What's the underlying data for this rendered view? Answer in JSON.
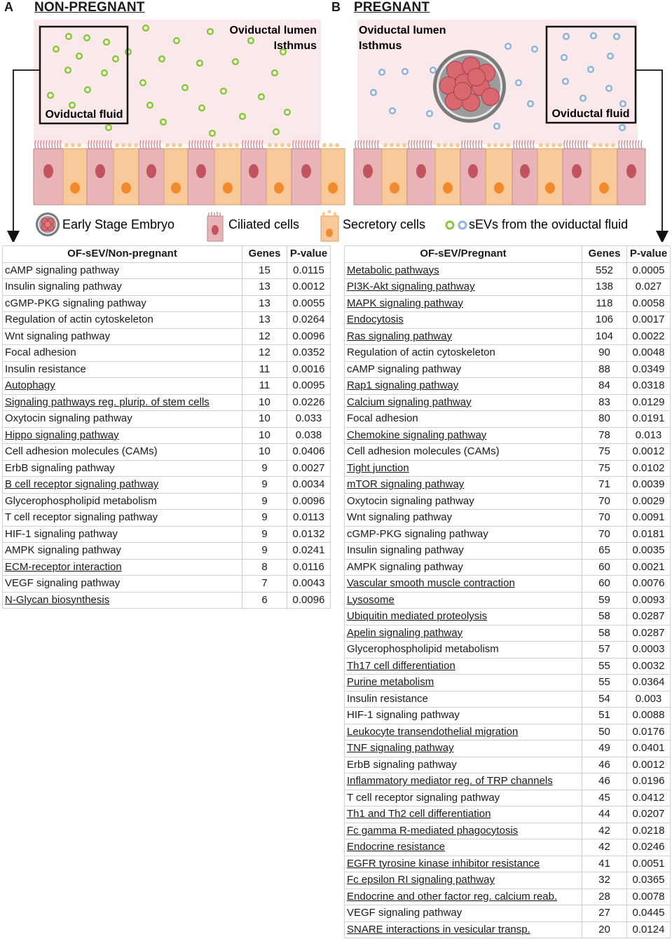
{
  "panel_a": {
    "letter": "A",
    "title": "NON-PREGNANT",
    "lumen": "Oviductal lumen",
    "region": "Isthmus",
    "fluid_label": "Oviductal fluid"
  },
  "panel_b": {
    "letter": "B",
    "title": "PREGNANT",
    "lumen": "Oviductal lumen",
    "region": "Isthmus",
    "fluid_label": "Oviductal fluid"
  },
  "legend": {
    "embryo": "Early Stage Embryo",
    "ciliated": "Ciliated cells",
    "secretory": "Secretory cells",
    "sevs": "sEVs from the oviductal fluid"
  },
  "colors": {
    "green_sev": "#8dc63f",
    "blue_sev": "#8fb4dc",
    "lumen_bg": "#f9e9ea",
    "ciliated": "#e8b4b8",
    "secretory": "#f9c99a",
    "embryo": "#d9676f"
  },
  "table_a": {
    "headers": [
      "OF-sEV/Non-pregnant",
      "Genes",
      "P-value"
    ],
    "rows": [
      {
        "name": "cAMP signaling pathway",
        "genes": "15",
        "p": "0.0115",
        "u": false
      },
      {
        "name": "Insulin signaling pathway",
        "genes": "13",
        "p": "0.0012",
        "u": false
      },
      {
        "name": "cGMP-PKG signaling pathway",
        "genes": "13",
        "p": "0.0055",
        "u": false
      },
      {
        "name": "Regulation of actin cytoskeleton",
        "genes": "13",
        "p": "0.0264",
        "u": false
      },
      {
        "name": "Wnt signaling pathway",
        "genes": "12",
        "p": "0.0096",
        "u": false
      },
      {
        "name": "Focal adhesion",
        "genes": "12",
        "p": "0.0352",
        "u": false
      },
      {
        "name": "Insulin resistance",
        "genes": "11",
        "p": "0.0016",
        "u": false
      },
      {
        "name": "Autophagy",
        "genes": "11",
        "p": "0.0095",
        "u": true
      },
      {
        "name": "Signaling pathways reg. plurip. of stem cells",
        "genes": "10",
        "p": "0.0226",
        "u": true
      },
      {
        "name": "Oxytocin signaling pathway",
        "genes": "10",
        "p": "0.033",
        "u": false
      },
      {
        "name": "Hippo signaling pathway",
        "genes": "10",
        "p": "0.038",
        "u": true
      },
      {
        "name": "Cell adhesion molecules (CAMs)",
        "genes": "10",
        "p": "0.0406",
        "u": false
      },
      {
        "name": "ErbB signaling pathway",
        "genes": "9",
        "p": "0.0027",
        "u": false
      },
      {
        "name": "B cell receptor signaling pathway",
        "genes": "9",
        "p": "0.0034",
        "u": true
      },
      {
        "name": "Glycerophospholipid metabolism",
        "genes": "9",
        "p": "0.0096",
        "u": false
      },
      {
        "name": "T cell receptor signaling pathway",
        "genes": "9",
        "p": "0.0113",
        "u": false
      },
      {
        "name": "HIF-1 signaling pathway",
        "genes": "9",
        "p": "0.0132",
        "u": false
      },
      {
        "name": "AMPK signaling pathway",
        "genes": "9",
        "p": "0.0241",
        "u": false
      },
      {
        "name": "ECM-receptor interaction",
        "genes": "8",
        "p": "0.0116",
        "u": true
      },
      {
        "name": "VEGF signaling pathway",
        "genes": "7",
        "p": "0.0043",
        "u": false
      },
      {
        "name": "N-Glycan biosynthesis",
        "genes": "6",
        "p": "0.0096",
        "u": true
      }
    ]
  },
  "table_b": {
    "headers": [
      "OF-sEV/Pregnant",
      "Genes",
      "P-value"
    ],
    "rows": [
      {
        "name": "Metabolic pathways",
        "genes": "552",
        "p": "0.0005",
        "u": true
      },
      {
        "name": "PI3K-Akt signaling pathway",
        "genes": "138",
        "p": "0.027",
        "u": true
      },
      {
        "name": "MAPK signaling pathway",
        "genes": "118",
        "p": "0.0058",
        "u": true
      },
      {
        "name": "Endocytosis",
        "genes": "106",
        "p": "0.0017",
        "u": true
      },
      {
        "name": "Ras signaling pathway",
        "genes": "104",
        "p": "0.0022",
        "u": true
      },
      {
        "name": "Regulation of actin cytoskeleton",
        "genes": "90",
        "p": "0.0048",
        "u": false
      },
      {
        "name": "cAMP signaling pathway",
        "genes": "88",
        "p": "0.0349",
        "u": false
      },
      {
        "name": "Rap1 signaling pathway",
        "genes": "84",
        "p": "0.0318",
        "u": true
      },
      {
        "name": "Calcium signaling pathway",
        "genes": "83",
        "p": "0.0129",
        "u": true
      },
      {
        "name": "Focal adhesion",
        "genes": "80",
        "p": "0.0191",
        "u": false
      },
      {
        "name": "Chemokine signaling pathway",
        "genes": "78",
        "p": "0.013",
        "u": true
      },
      {
        "name": "Cell adhesion molecules (CAMs)",
        "genes": "75",
        "p": "0.0012",
        "u": false
      },
      {
        "name": "Tight junction",
        "genes": "75",
        "p": "0.0102",
        "u": true
      },
      {
        "name": "mTOR signaling pathway",
        "genes": "71",
        "p": "0.0039",
        "u": true
      },
      {
        "name": "Oxytocin signaling pathway",
        "genes": "70",
        "p": "0.0029",
        "u": false
      },
      {
        "name": "Wnt signaling pathway",
        "genes": "70",
        "p": "0.0091",
        "u": false
      },
      {
        "name": "cGMP-PKG signaling pathway",
        "genes": "70",
        "p": "0.0181",
        "u": false
      },
      {
        "name": "Insulin signaling pathway",
        "genes": "65",
        "p": "0.0035",
        "u": false
      },
      {
        "name": "AMPK signaling pathway",
        "genes": "60",
        "p": "0.0021",
        "u": false
      },
      {
        "name": "Vascular smooth muscle contraction",
        "genes": "60",
        "p": "0.0076",
        "u": true
      },
      {
        "name": "Lysosome",
        "genes": "59",
        "p": "0.0093",
        "u": true
      },
      {
        "name": "Ubiquitin mediated proteolysis",
        "genes": "58",
        "p": "0.0287",
        "u": true
      },
      {
        "name": "Apelin signaling pathway",
        "genes": "58",
        "p": "0.0287",
        "u": true
      },
      {
        "name": "Glycerophospholipid metabolism",
        "genes": "57",
        "p": "0.0003",
        "u": false
      },
      {
        "name": "Th17 cell differentiation",
        "genes": "55",
        "p": "0.0032",
        "u": true
      },
      {
        "name": "Purine metabolism",
        "genes": "55",
        "p": "0.0364",
        "u": true
      },
      {
        "name": "Insulin resistance",
        "genes": "54",
        "p": "0.003",
        "u": false
      },
      {
        "name": "HIF-1 signaling pathway",
        "genes": "51",
        "p": "0.0088",
        "u": false
      },
      {
        "name": "Leukocyte transendothelial migration",
        "genes": "50",
        "p": "0.0176",
        "u": true
      },
      {
        "name": "TNF signaling pathway",
        "genes": "49",
        "p": "0.0401",
        "u": true
      },
      {
        "name": "ErbB signaling pathway",
        "genes": "46",
        "p": "0.0012",
        "u": false
      },
      {
        "name": "Inflammatory mediator reg. of TRP channels",
        "genes": "46",
        "p": "0.0196",
        "u": true
      },
      {
        "name": "T cell receptor signaling pathway",
        "genes": "45",
        "p": "0.0412",
        "u": false
      },
      {
        "name": "Th1 and Th2 cell differentiation",
        "genes": "44",
        "p": "0.0207",
        "u": true
      },
      {
        "name": "Fc gamma R-mediated phagocytosis",
        "genes": "42",
        "p": "0.0218",
        "u": true
      },
      {
        "name": "Endocrine resistance",
        "genes": "42",
        "p": "0.0246",
        "u": true
      },
      {
        "name": "EGFR tyrosine kinase inhibitor resistance",
        "genes": "41",
        "p": "0.0051",
        "u": true
      },
      {
        "name": "Fc epsilon RI signaling pathway",
        "genes": "32",
        "p": "0.0365",
        "u": true
      },
      {
        "name": "Endocrine and other factor reg. calcium reab.",
        "genes": "28",
        "p": "0.0078",
        "u": true
      },
      {
        "name": "VEGF signaling pathway",
        "genes": "27",
        "p": "0.0445",
        "u": false
      },
      {
        "name": "SNARE interactions in vesicular transp.",
        "genes": "20",
        "p": "0.0124",
        "u": true
      }
    ]
  }
}
